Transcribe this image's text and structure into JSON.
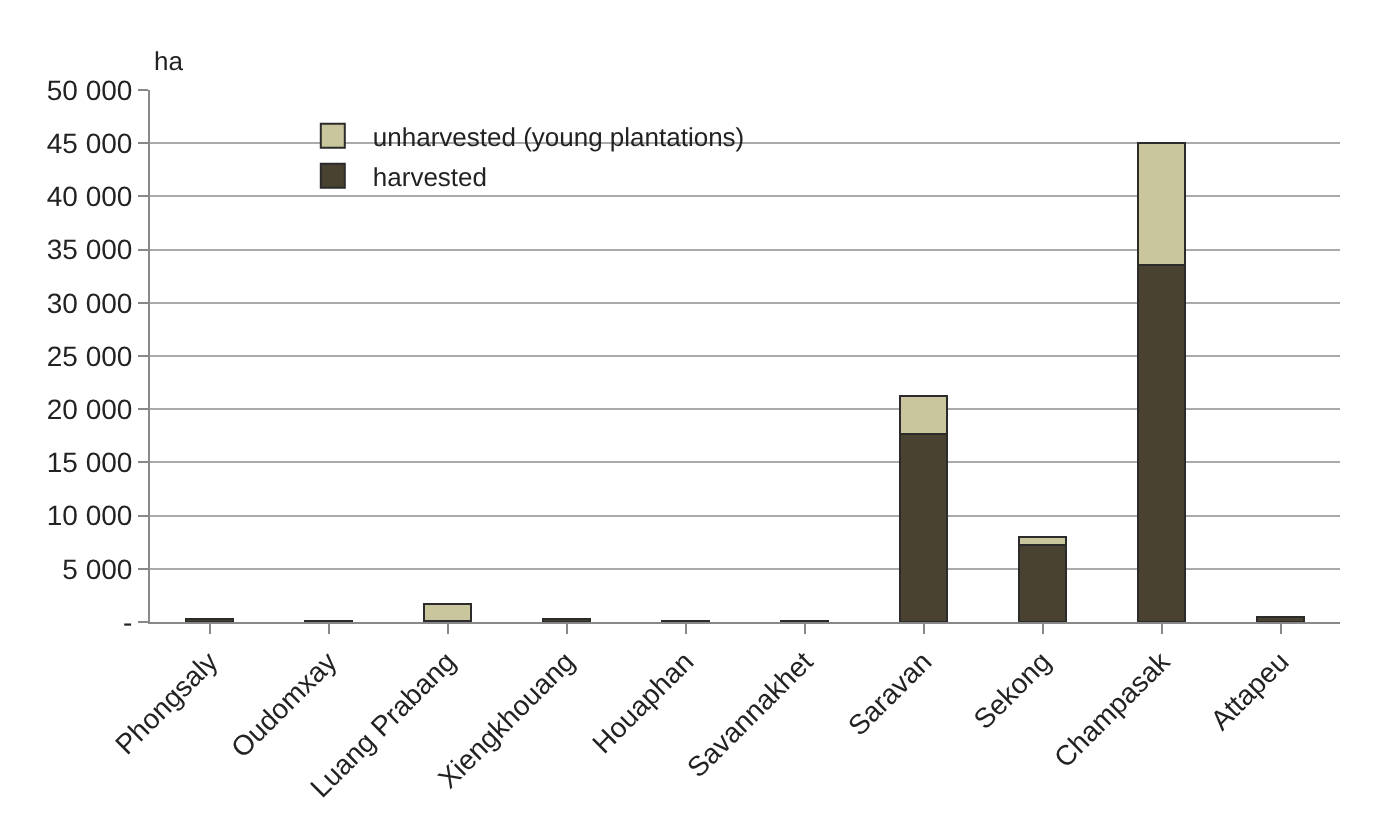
{
  "chart_data": {
    "type": "bar",
    "stacked": true,
    "ylabel": "ha",
    "categories": [
      "Phongsaly",
      "Oudomxay",
      "Luang Prabang",
      "Xiengkhouang",
      "Houaphan",
      "Savannakhet",
      "Saravan",
      "Sekong",
      "Champasak",
      "Attapeu"
    ],
    "series": [
      {
        "name": "harvested",
        "color": "#4a4230",
        "values": [
          300,
          100,
          100,
          300,
          100,
          100,
          17700,
          7200,
          33600,
          500
        ]
      },
      {
        "name": "unharvested (young plantations)",
        "color": "#c9c59c",
        "values": [
          null,
          null,
          1600,
          null,
          null,
          null,
          3500,
          800,
          11400,
          null
        ]
      }
    ],
    "ylim": [
      0,
      50000
    ],
    "yticks": [
      {
        "value": 0,
        "label": "-"
      },
      {
        "value": 5000,
        "label": "5 000"
      },
      {
        "value": 10000,
        "label": "10 000"
      },
      {
        "value": 15000,
        "label": "15 000"
      },
      {
        "value": 20000,
        "label": "20 000"
      },
      {
        "value": 25000,
        "label": "25 000"
      },
      {
        "value": 30000,
        "label": "30 000"
      },
      {
        "value": 35000,
        "label": "35 000"
      },
      {
        "value": 40000,
        "label": "40 000"
      },
      {
        "value": 45000,
        "label": "45 000"
      },
      {
        "value": 50000,
        "label": "50 000"
      }
    ],
    "grid": "y",
    "legend": "top left"
  }
}
